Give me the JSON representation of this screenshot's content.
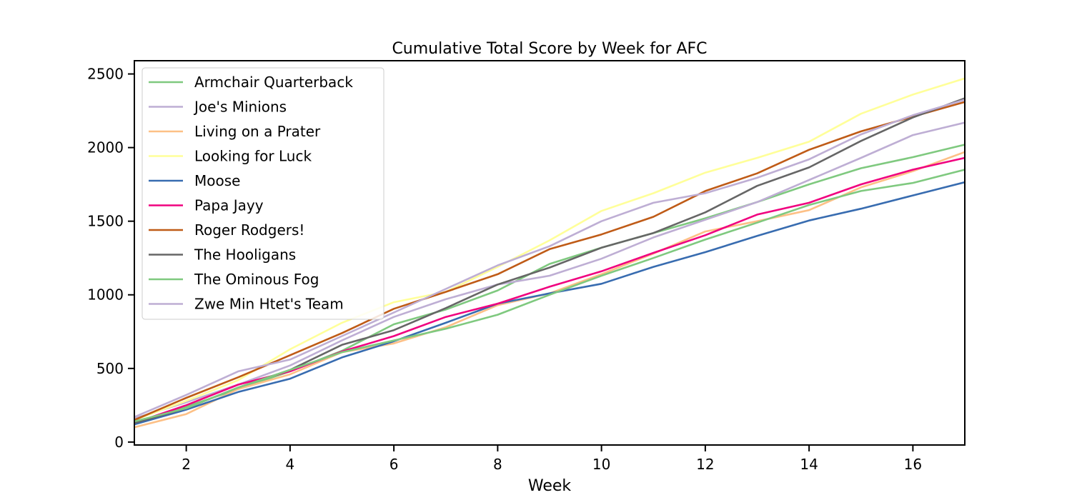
{
  "chart_data": {
    "type": "line",
    "title": "Cumulative Total Score by Week for AFC",
    "xlabel": "Week",
    "ylabel": "",
    "xlim": [
      1,
      17
    ],
    "ylim": [
      -20,
      2590
    ],
    "xticks": [
      2,
      4,
      6,
      8,
      10,
      12,
      14,
      16
    ],
    "yticks": [
      0,
      500,
      1000,
      1500,
      2000,
      2500
    ],
    "grid": false,
    "legend_position": "top-left",
    "x": [
      1,
      2,
      3,
      4,
      5,
      6,
      7,
      8,
      9,
      10,
      11,
      12,
      13,
      14,
      15,
      16,
      17
    ],
    "series": [
      {
        "name": "Armchair Quarterback",
        "color": "#7fc97f",
        "values": [
          130,
          240,
          360,
          480,
          620,
          800,
          900,
          1030,
          1210,
          1320,
          1420,
          1520,
          1630,
          1750,
          1860,
          1935,
          2020
        ]
      },
      {
        "name": "Joe's Minions",
        "color": "#beaed4",
        "values": [
          160,
          270,
          390,
          520,
          690,
          850,
          970,
          1070,
          1130,
          1245,
          1390,
          1510,
          1630,
          1780,
          1930,
          2085,
          2170
        ]
      },
      {
        "name": "Living on a Prater",
        "color": "#fdc086",
        "values": [
          100,
          190,
          360,
          460,
          610,
          670,
          780,
          930,
          1010,
          1140,
          1280,
          1430,
          1500,
          1575,
          1730,
          1840,
          1970
        ]
      },
      {
        "name": "Looking for Luck",
        "color": "#ffff99",
        "values": [
          150,
          280,
          420,
          630,
          810,
          950,
          1020,
          1190,
          1370,
          1570,
          1690,
          1830,
          1930,
          2040,
          2230,
          2360,
          2470
        ]
      },
      {
        "name": "Moose",
        "color": "#386cb0",
        "values": [
          120,
          220,
          340,
          430,
          575,
          685,
          810,
          940,
          1010,
          1075,
          1190,
          1290,
          1400,
          1505,
          1585,
          1675,
          1765
        ]
      },
      {
        "name": "Papa Jayy",
        "color": "#f0027f",
        "values": [
          130,
          250,
          390,
          480,
          615,
          720,
          850,
          940,
          1055,
          1160,
          1285,
          1405,
          1545,
          1625,
          1750,
          1850,
          1930
        ]
      },
      {
        "name": "Roger Rodgers!",
        "color": "#bf5b17",
        "values": [
          150,
          300,
          440,
          590,
          740,
          905,
          1020,
          1140,
          1310,
          1410,
          1530,
          1705,
          1825,
          1985,
          2110,
          2210,
          2310
        ]
      },
      {
        "name": "The Hooligans",
        "color": "#666666",
        "values": [
          130,
          230,
          370,
          490,
          660,
          760,
          910,
          1070,
          1185,
          1320,
          1420,
          1560,
          1740,
          1865,
          2045,
          2205,
          2335
        ]
      },
      {
        "name": "The Ominous Fog",
        "color": "#7fc97f",
        "values": [
          140,
          230,
          370,
          490,
          610,
          690,
          770,
          865,
          1000,
          1130,
          1250,
          1375,
          1490,
          1610,
          1705,
          1760,
          1850
        ]
      },
      {
        "name": "Zwe Min Htet's Team",
        "color": "#beaed4",
        "values": [
          170,
          320,
          480,
          560,
          720,
          880,
          1040,
          1200,
          1330,
          1500,
          1625,
          1690,
          1795,
          1920,
          2090,
          2220,
          2325
        ]
      }
    ]
  }
}
